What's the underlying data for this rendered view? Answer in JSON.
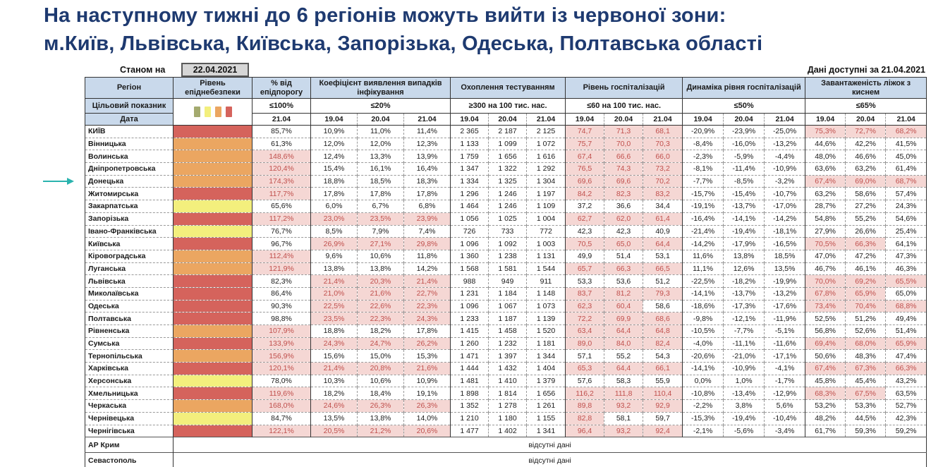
{
  "title": {
    "line1": "На наступному тижні до 6 регіонів можуть вийти із червоної зони:",
    "line2": "м.Київ, Львівська, Київська, Запорізька, Одеська, Полтавська області"
  },
  "meta": {
    "as_of_label": "Станом на",
    "as_of_date": "22.04.2021",
    "data_available": "Дані доступні за 21.04.2021"
  },
  "colors": {
    "title_text": "#1e3a70",
    "header_bg": "#c9d9eb",
    "level_red": "#d5635c",
    "level_orange": "#eba661",
    "level_yellow": "#f3ef7d",
    "legend_green": "#a4aa6f",
    "highlight_bg": "#f5d7d4",
    "highlight_text": "#c0504d",
    "arrow": "#2ab3ae",
    "date_box_bg": "#d6d6d6"
  },
  "table": {
    "region_header": "Регіон",
    "level_header": "Рівень епіднебезпеки",
    "target_row_label": "Цільовий показник",
    "date_row_label": "Дата",
    "legend_colors": [
      "#a4aa6f",
      "#f3ef7d",
      "#eba661",
      "#d5635c"
    ],
    "level_colors": {
      "red": "#d5635c",
      "orange": "#eba661",
      "yellow": "#f3ef7d"
    },
    "columns": [
      {
        "label": "% від епідпорогу",
        "target": "≤100%",
        "dates": [
          "21.04"
        ]
      },
      {
        "label": "Коефіцієнт виявлення випадків інфікування",
        "target": "≤20%",
        "dates": [
          "19.04",
          "20.04",
          "21.04"
        ]
      },
      {
        "label": "Охоплення тестуванням",
        "target": "≥300 на 100 тис. нас.",
        "dates": [
          "19.04",
          "20.04",
          "21.04"
        ]
      },
      {
        "label": "Рівень госпіталізацій",
        "target": "≤60 на 100 тис. нас.",
        "dates": [
          "19.04",
          "20.04",
          "21.04"
        ]
      },
      {
        "label": "Динаміка рівня госпіталізацій",
        "target": "≤50%",
        "dates": [
          "19.04",
          "20.04",
          "21.04"
        ]
      },
      {
        "label": "Завантаженість ліжок з киснем",
        "target": "≤65%",
        "dates": [
          "19.04",
          "20.04",
          "21.04"
        ]
      }
    ],
    "rows": [
      {
        "region": "КИЇВ",
        "level": "red",
        "values": [
          "85,7%",
          "10,9%",
          "11,0%",
          "11,4%",
          "2 365",
          "2 187",
          "2 125",
          "74,7",
          "71,3",
          "68,1",
          "-20,9%",
          "-23,9%",
          "-25,0%",
          "75,3%",
          "72,7%",
          "68,2%"
        ],
        "hl": [
          7,
          8,
          9,
          13,
          14,
          15
        ]
      },
      {
        "region": "Вінницька",
        "level": "orange",
        "values": [
          "61,3%",
          "12,0%",
          "12,0%",
          "12,3%",
          "1 133",
          "1 099",
          "1 072",
          "75,7",
          "70,0",
          "70,3",
          "-8,4%",
          "-16,0%",
          "-13,2%",
          "44,6%",
          "42,2%",
          "41,5%"
        ],
        "hl": [
          7,
          8,
          9
        ]
      },
      {
        "region": "Волинська",
        "level": "orange",
        "values": [
          "148,6%",
          "12,4%",
          "13,3%",
          "13,9%",
          "1 759",
          "1 656",
          "1 616",
          "67,4",
          "66,6",
          "66,0",
          "-2,3%",
          "-5,9%",
          "-4,4%",
          "48,0%",
          "46,6%",
          "45,0%"
        ],
        "hl": [
          0,
          7,
          8,
          9
        ]
      },
      {
        "region": "Дніпропетровська",
        "level": "orange",
        "values": [
          "120,4%",
          "15,4%",
          "16,1%",
          "16,4%",
          "1 347",
          "1 322",
          "1 292",
          "76,5",
          "74,3",
          "73,2",
          "-8,1%",
          "-11,4%",
          "-10,9%",
          "63,6%",
          "63,2%",
          "61,4%"
        ],
        "hl": [
          0,
          7,
          8,
          9
        ]
      },
      {
        "region": "Донецька",
        "level": "orange",
        "values": [
          "174,3%",
          "18,8%",
          "18,5%",
          "18,3%",
          "1 334",
          "1 325",
          "1 304",
          "69,6",
          "69,6",
          "70,2",
          "-7,7%",
          "-8,5%",
          "-3,2%",
          "67,4%",
          "69,0%",
          "68,7%"
        ],
        "hl": [
          0,
          7,
          8,
          9,
          13,
          14,
          15
        ]
      },
      {
        "region": "Житомирська",
        "level": "red",
        "values": [
          "117,7%",
          "17,8%",
          "17,8%",
          "17,8%",
          "1 296",
          "1 246",
          "1 197",
          "84,2",
          "82,3",
          "83,2",
          "-15,7%",
          "-15,4%",
          "-10,7%",
          "63,2%",
          "58,6%",
          "57,4%"
        ],
        "hl": [
          0,
          7,
          8,
          9
        ]
      },
      {
        "region": "Закарпатська",
        "level": "yellow",
        "values": [
          "65,6%",
          "6,0%",
          "6,7%",
          "6,8%",
          "1 464",
          "1 246",
          "1 109",
          "37,2",
          "36,6",
          "34,4",
          "-19,1%",
          "-13,7%",
          "-17,0%",
          "28,7%",
          "27,2%",
          "24,3%"
        ],
        "hl": []
      },
      {
        "region": "Запорізька",
        "level": "red",
        "values": [
          "117,2%",
          "23,0%",
          "23,5%",
          "23,9%",
          "1 056",
          "1 025",
          "1 004",
          "62,7",
          "62,0",
          "61,4",
          "-16,4%",
          "-14,1%",
          "-14,2%",
          "54,8%",
          "55,2%",
          "54,6%"
        ],
        "hl": [
          0,
          1,
          2,
          3,
          7,
          8,
          9
        ]
      },
      {
        "region": "Івано-Франківська",
        "level": "yellow",
        "values": [
          "76,7%",
          "8,5%",
          "7,9%",
          "7,4%",
          "726",
          "733",
          "772",
          "42,3",
          "42,3",
          "40,9",
          "-21,4%",
          "-19,4%",
          "-18,1%",
          "27,9%",
          "26,6%",
          "25,4%"
        ],
        "hl": []
      },
      {
        "region": "Київська",
        "level": "red",
        "values": [
          "96,7%",
          "26,9%",
          "27,1%",
          "29,8%",
          "1 096",
          "1 092",
          "1 003",
          "70,5",
          "65,0",
          "64,4",
          "-14,2%",
          "-17,9%",
          "-16,5%",
          "70,5%",
          "66,3%",
          "64,1%"
        ],
        "hl": [
          1,
          2,
          3,
          7,
          8,
          9,
          13,
          14
        ]
      },
      {
        "region": "Кіровоградська",
        "level": "orange",
        "values": [
          "112,4%",
          "9,6%",
          "10,6%",
          "11,8%",
          "1 360",
          "1 238",
          "1 131",
          "49,9",
          "51,4",
          "53,1",
          "11,6%",
          "13,8%",
          "18,5%",
          "47,0%",
          "47,2%",
          "47,3%"
        ],
        "hl": [
          0
        ]
      },
      {
        "region": "Луганська",
        "level": "orange",
        "values": [
          "121,9%",
          "13,8%",
          "13,8%",
          "14,2%",
          "1 568",
          "1 581",
          "1 544",
          "65,7",
          "66,3",
          "66,5",
          "11,1%",
          "12,6%",
          "13,5%",
          "46,7%",
          "46,1%",
          "46,3%"
        ],
        "hl": [
          0,
          7,
          8,
          9
        ]
      },
      {
        "region": "Львівська",
        "level": "red",
        "values": [
          "82,3%",
          "21,4%",
          "20,3%",
          "21,4%",
          "988",
          "949",
          "911",
          "53,3",
          "53,6",
          "51,2",
          "-22,5%",
          "-18,2%",
          "-19,9%",
          "70,0%",
          "69,2%",
          "65,5%"
        ],
        "hl": [
          1,
          2,
          3,
          13,
          14,
          15
        ]
      },
      {
        "region": "Миколаївська",
        "level": "red",
        "values": [
          "86,4%",
          "21,0%",
          "21,6%",
          "22,7%",
          "1 231",
          "1 184",
          "1 148",
          "83,7",
          "81,2",
          "79,3",
          "-14,1%",
          "-13,7%",
          "-13,2%",
          "67,8%",
          "65,9%",
          "65,0%"
        ],
        "hl": [
          1,
          2,
          3,
          7,
          8,
          9,
          13,
          14
        ]
      },
      {
        "region": "Одеська",
        "level": "red",
        "values": [
          "90,3%",
          "22,5%",
          "22,6%",
          "22,3%",
          "1 096",
          "1 067",
          "1 073",
          "62,3",
          "60,4",
          "58,6",
          "-18,6%",
          "-17,3%",
          "-17,6%",
          "73,4%",
          "70,4%",
          "68,8%"
        ],
        "hl": [
          1,
          2,
          3,
          7,
          8,
          13,
          14,
          15
        ]
      },
      {
        "region": "Полтавська",
        "level": "red",
        "values": [
          "98,8%",
          "23,5%",
          "22,3%",
          "24,3%",
          "1 233",
          "1 187",
          "1 139",
          "72,2",
          "69,9",
          "68,6",
          "-9,8%",
          "-12,1%",
          "-11,9%",
          "52,5%",
          "51,2%",
          "49,4%"
        ],
        "hl": [
          1,
          2,
          3,
          7,
          8,
          9
        ]
      },
      {
        "region": "Рівненська",
        "level": "orange",
        "values": [
          "107,9%",
          "18,8%",
          "18,2%",
          "17,8%",
          "1 415",
          "1 458",
          "1 520",
          "63,4",
          "64,4",
          "64,8",
          "-10,5%",
          "-7,7%",
          "-5,1%",
          "56,8%",
          "52,6%",
          "51,4%"
        ],
        "hl": [
          0,
          7,
          8,
          9
        ]
      },
      {
        "region": "Сумська",
        "level": "red",
        "values": [
          "133,9%",
          "24,3%",
          "24,7%",
          "26,2%",
          "1 260",
          "1 232",
          "1 181",
          "89,0",
          "84,0",
          "82,4",
          "-4,0%",
          "-11,1%",
          "-11,6%",
          "69,4%",
          "68,0%",
          "65,9%"
        ],
        "hl": [
          0,
          1,
          2,
          3,
          7,
          8,
          9,
          13,
          14,
          15
        ]
      },
      {
        "region": "Тернопільська",
        "level": "orange",
        "values": [
          "156,9%",
          "15,6%",
          "15,0%",
          "15,3%",
          "1 471",
          "1 397",
          "1 344",
          "57,1",
          "55,2",
          "54,3",
          "-20,6%",
          "-21,0%",
          "-17,1%",
          "50,6%",
          "48,3%",
          "47,4%"
        ],
        "hl": [
          0
        ]
      },
      {
        "region": "Харківська",
        "level": "red",
        "values": [
          "120,1%",
          "21,4%",
          "20,8%",
          "21,6%",
          "1 444",
          "1 432",
          "1 404",
          "65,3",
          "64,4",
          "66,1",
          "-14,1%",
          "-10,9%",
          "-4,1%",
          "67,4%",
          "67,3%",
          "66,3%"
        ],
        "hl": [
          0,
          1,
          2,
          3,
          7,
          8,
          9,
          13,
          14,
          15
        ]
      },
      {
        "region": "Херсонська",
        "level": "yellow",
        "values": [
          "78,0%",
          "10,3%",
          "10,6%",
          "10,9%",
          "1 481",
          "1 410",
          "1 379",
          "57,6",
          "58,3",
          "55,9",
          "0,0%",
          "1,0%",
          "-1,7%",
          "45,8%",
          "45,4%",
          "43,2%"
        ],
        "hl": []
      },
      {
        "region": "Хмельницька",
        "level": "red",
        "values": [
          "119,6%",
          "18,2%",
          "18,4%",
          "19,1%",
          "1 898",
          "1 814",
          "1 656",
          "116,2",
          "111,8",
          "110,4",
          "-10,8%",
          "-13,4%",
          "-12,9%",
          "68,3%",
          "67,5%",
          "63,5%"
        ],
        "hl": [
          0,
          7,
          8,
          9,
          13,
          14
        ]
      },
      {
        "region": "Черкаська",
        "level": "orange",
        "values": [
          "168,0%",
          "24,6%",
          "26,3%",
          "26,3%",
          "1 352",
          "1 278",
          "1 261",
          "89,8",
          "93,2",
          "92,9",
          "-2,2%",
          "3,8%",
          "5,6%",
          "53,2%",
          "53,3%",
          "52,7%"
        ],
        "hl": [
          0,
          1,
          2,
          3,
          7,
          8,
          9
        ]
      },
      {
        "region": "Чернівецька",
        "level": "yellow",
        "values": [
          "84,7%",
          "13,5%",
          "13,8%",
          "14,0%",
          "1 210",
          "1 180",
          "1 155",
          "82,8",
          "58,1",
          "59,7",
          "-15,3%",
          "-19,4%",
          "-10,4%",
          "48,2%",
          "44,5%",
          "42,3%"
        ],
        "hl": [
          7
        ]
      },
      {
        "region": "Чернігівська",
        "level": "red",
        "values": [
          "122,1%",
          "20,5%",
          "21,2%",
          "20,6%",
          "1 477",
          "1 402",
          "1 341",
          "96,4",
          "93,2",
          "92,4",
          "-2,1%",
          "-5,6%",
          "-3,4%",
          "61,7%",
          "59,3%",
          "59,2%"
        ],
        "hl": [
          0,
          1,
          2,
          3,
          7,
          8,
          9
        ]
      }
    ],
    "no_data_rows": [
      {
        "region": "АР Крим",
        "text": "відсутні дані"
      },
      {
        "region": "Севастополь",
        "text": "відсутні дані"
      }
    ]
  }
}
